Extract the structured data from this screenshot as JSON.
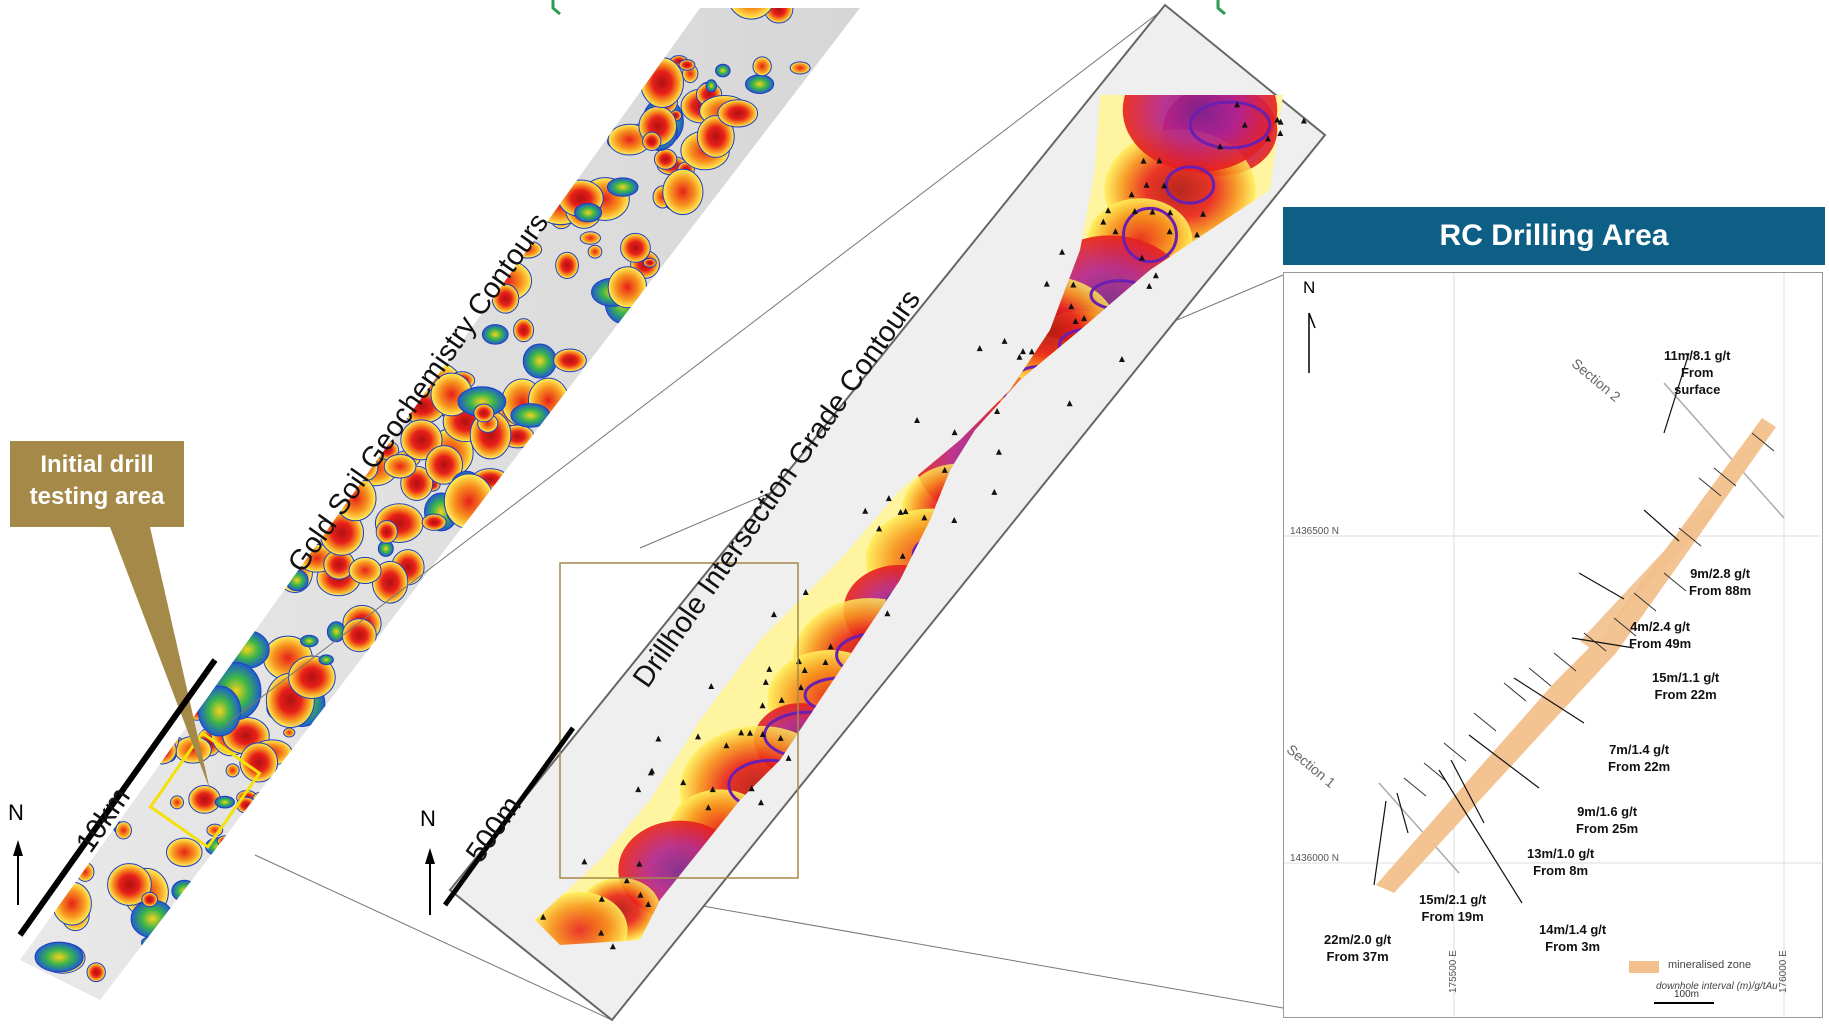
{
  "labels": {
    "soil_contours": "Gold Soil Geochemistry Contours",
    "drillhole_contours": "Drillhole Intersection Grade Contours",
    "scale_10km": "10km",
    "scale_500m": "500m",
    "north": "N"
  },
  "callout": {
    "line1": "Initial drill",
    "line2": "testing area"
  },
  "rc_panel": {
    "title": "RC Drilling Area",
    "north": "N",
    "section1": "Section 1",
    "section2": "Section 2",
    "grid_label_1": "1436500 N",
    "grid_label_2": "1436000 N",
    "grid_label_3": "175500 E",
    "grid_label_4": "176000 E",
    "legend_mineralised": "mineralised zone",
    "legend_downhole": "downhole interval (m)/g/tAu",
    "scale_label": "100m",
    "intercepts": [
      {
        "l1": "11m/8.1 g/t",
        "l2": "From",
        "l3": "surface"
      },
      {
        "l1": "9m/2.8 g/t",
        "l2": "From 88m"
      },
      {
        "l1": "4m/2.4 g/t",
        "l2": "From 49m"
      },
      {
        "l1": "15m/1.1 g/t",
        "l2": "From 22m"
      },
      {
        "l1": "7m/1.4 g/t",
        "l2": "From 22m"
      },
      {
        "l1": "9m/1.6 g/t",
        "l2": "From 25m"
      },
      {
        "l1": "13m/1.0 g/t",
        "l2": "From 8m"
      },
      {
        "l1": "14m/1.4 g/t",
        "l2": "From 3m"
      },
      {
        "l1": "15m/2.1 g/t",
        "l2": "From 19m"
      },
      {
        "l1": "22m/2.0 g/t",
        "l2": "From 37m"
      }
    ]
  },
  "colors": {
    "callout": "#a58949",
    "rc_header": "#0d5f86",
    "mineralised": "#f2c08c",
    "high_grade": "#e8201a",
    "mid_grade": "#f7941d",
    "low_grade": "#fff15a",
    "contour": "#6a1fb0"
  }
}
